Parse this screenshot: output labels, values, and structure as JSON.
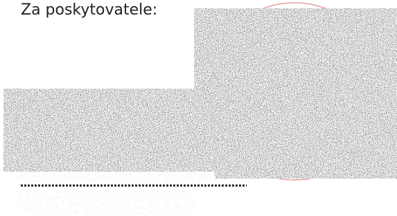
{
  "signature_block": {
    "label": "Za poskytovatele:"
  }
}
